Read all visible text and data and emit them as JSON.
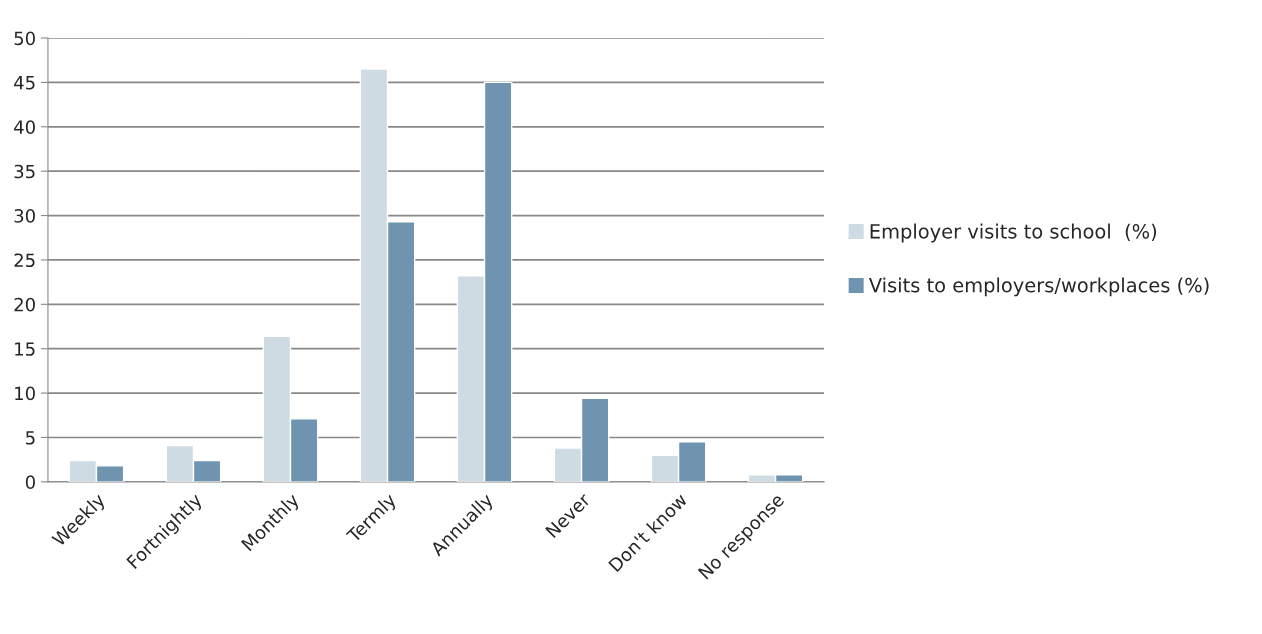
{
  "chart_data": {
    "type": "bar",
    "categories": [
      "Weekly",
      "Fortnightly",
      "Monthly",
      "Termly",
      "Annually",
      "Never",
      "Don't know",
      "No response"
    ],
    "series": [
      {
        "name": "Employer visits to school  (%)",
        "color": "#cfdbe3",
        "values": [
          2.4,
          4.1,
          16.4,
          46.5,
          23.2,
          3.8,
          3.0,
          0.8
        ]
      },
      {
        "name": "Visits to employers/workplaces (%)",
        "color": "#6e94b0",
        "values": [
          1.8,
          2.4,
          7.1,
          29.3,
          45.0,
          9.4,
          4.5,
          0.8
        ]
      }
    ],
    "ylim": [
      0,
      50
    ],
    "yticks": [
      0,
      5,
      10,
      15,
      20,
      25,
      30,
      35,
      40,
      45,
      50
    ],
    "grid": "y",
    "legend": "right"
  }
}
